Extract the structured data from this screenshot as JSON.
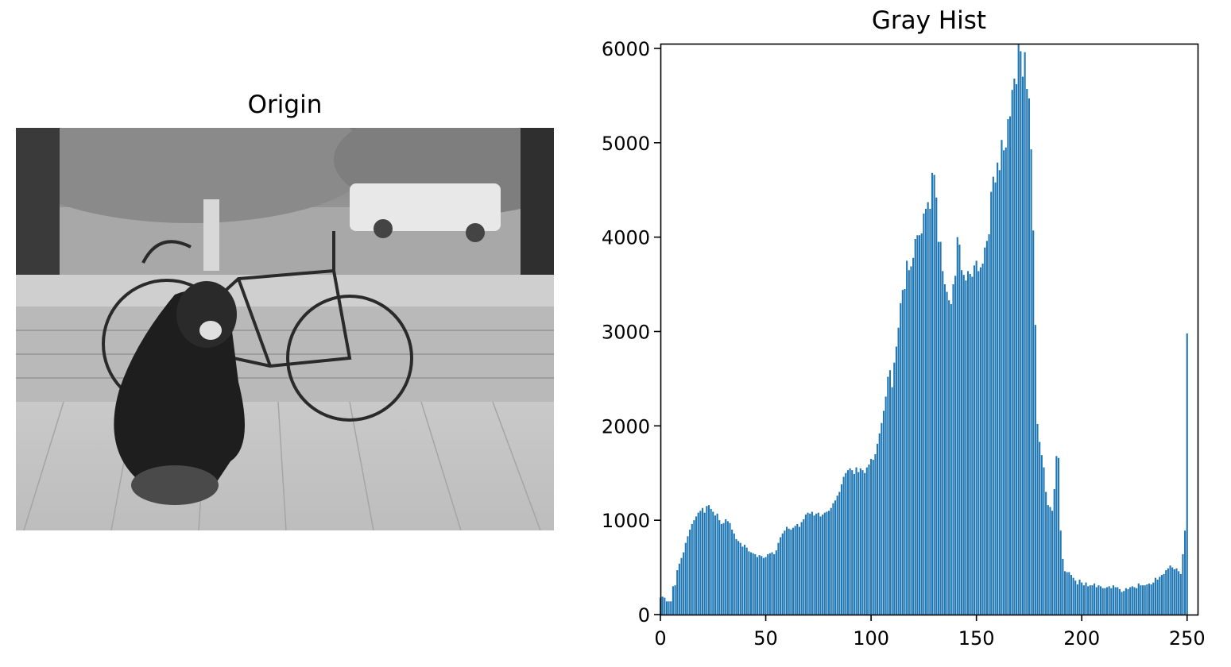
{
  "origin": {
    "title": "Origin"
  },
  "chart_data": {
    "type": "bar",
    "title": "Gray Hist",
    "xlabel": "",
    "ylabel": "",
    "xlim": [
      0,
      255
    ],
    "ylim": [
      0,
      6050
    ],
    "xticks": [
      0,
      50,
      100,
      150,
      200,
      250
    ],
    "yticks": [
      0,
      1000,
      2000,
      3000,
      4000,
      5000,
      6000
    ],
    "bar_color": "#1f77b4",
    "x": "0..255 (one bar per gray level)",
    "values": [
      180,
      190,
      180,
      140,
      140,
      140,
      300,
      310,
      470,
      540,
      600,
      660,
      760,
      830,
      900,
      960,
      1000,
      1040,
      1080,
      1100,
      1130,
      1080,
      1150,
      1160,
      1120,
      1090,
      1050,
      1070,
      1000,
      960,
      970,
      1010,
      990,
      970,
      900,
      860,
      800,
      780,
      760,
      720,
      740,
      710,
      670,
      660,
      650,
      640,
      610,
      630,
      620,
      600,
      610,
      640,
      650,
      660,
      640,
      680,
      760,
      820,
      860,
      890,
      930,
      910,
      900,
      920,
      940,
      960,
      930,
      980,
      1010,
      1060,
      1080,
      1070,
      1090,
      1050,
      1070,
      1080,
      1040,
      1060,
      1080,
      1090,
      1100,
      1130,
      1180,
      1210,
      1260,
      1300,
      1380,
      1460,
      1500,
      1530,
      1550,
      1530,
      1490,
      1560,
      1510,
      1550,
      1530,
      1500,
      1560,
      1590,
      1650,
      1640,
      1700,
      1810,
      1920,
      2030,
      2160,
      2310,
      2520,
      2590,
      2410,
      2670,
      2840,
      3040,
      3300,
      3440,
      3450,
      3750,
      3650,
      3690,
      3780,
      3980,
      4020,
      4020,
      4040,
      4250,
      4300,
      4370,
      4300,
      4680,
      4660,
      4420,
      3950,
      3950,
      3640,
      3500,
      3420,
      3330,
      3290,
      3500,
      3590,
      4000,
      3920,
      3650,
      3600,
      3540,
      3640,
      3610,
      3580,
      3700,
      3750,
      3640,
      3680,
      3720,
      3890,
      3960,
      4030,
      4480,
      4640,
      4580,
      4790,
      4710,
      5030,
      4920,
      4950,
      5250,
      5280,
      5560,
      5680,
      5620,
      6060,
      5970,
      5700,
      5960,
      5570,
      5470,
      4930,
      4070,
      3070,
      2020,
      1830,
      1690,
      1560,
      1300,
      1160,
      1140,
      1100,
      1330,
      1680,
      1660,
      890,
      590,
      460,
      450,
      450,
      420,
      390,
      360,
      320,
      370,
      340,
      310,
      340,
      300,
      310,
      310,
      330,
      290,
      310,
      300,
      280,
      280,
      290,
      300,
      280,
      310,
      290,
      290,
      270,
      240,
      250,
      280,
      270,
      290,
      300,
      290,
      280,
      330,
      310,
      310,
      310,
      320,
      330,
      320,
      340,
      390,
      370,
      400,
      420,
      430,
      470,
      490,
      520,
      500,
      480,
      490,
      460,
      430,
      640,
      890,
      2980
    ]
  }
}
